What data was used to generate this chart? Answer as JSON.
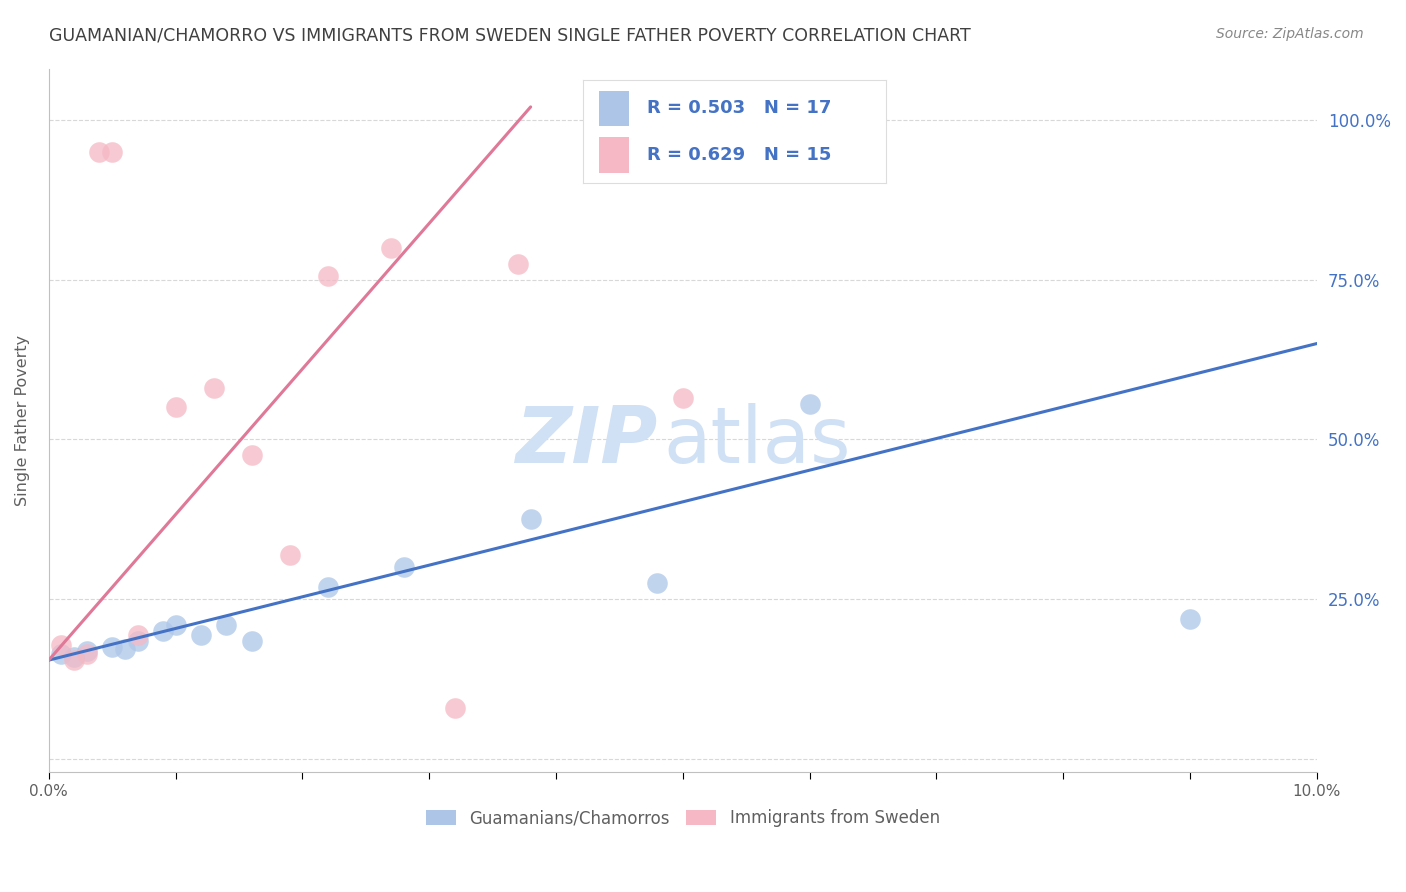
{
  "title": "GUAMANIAN/CHAMORRO VS IMMIGRANTS FROM SWEDEN SINGLE FATHER POVERTY CORRELATION CHART",
  "source": "Source: ZipAtlas.com",
  "ylabel": "Single Father Poverty",
  "blue_label": "Guamanians/Chamorros",
  "pink_label": "Immigrants from Sweden",
  "blue_R": "R = 0.503",
  "blue_N": "N = 17",
  "pink_R": "R = 0.629",
  "pink_N": "N = 15",
  "blue_color": "#adc6e8",
  "pink_color": "#f5b8c4",
  "blue_line_color": "#4472c4",
  "pink_line_color": "#e07898",
  "blue_x": [
    0.001,
    0.002,
    0.003,
    0.005,
    0.006,
    0.007,
    0.009,
    0.01,
    0.012,
    0.014,
    0.016,
    0.022,
    0.028,
    0.038,
    0.048,
    0.06,
    0.09
  ],
  "blue_y": [
    0.165,
    0.16,
    0.17,
    0.175,
    0.172,
    0.185,
    0.2,
    0.21,
    0.195,
    0.21,
    0.185,
    0.27,
    0.3,
    0.375,
    0.275,
    0.555,
    0.22
  ],
  "pink_x": [
    0.001,
    0.002,
    0.003,
    0.004,
    0.005,
    0.007,
    0.01,
    0.013,
    0.016,
    0.019,
    0.022,
    0.027,
    0.032,
    0.037,
    0.05
  ],
  "pink_y": [
    0.178,
    0.155,
    0.165,
    0.95,
    0.95,
    0.195,
    0.55,
    0.58,
    0.475,
    0.32,
    0.755,
    0.8,
    0.08,
    0.775,
    0.565
  ],
  "blue_trend_x": [
    0.0,
    0.1
  ],
  "blue_trend_y": [
    0.155,
    0.65
  ],
  "pink_trend_x": [
    0.0,
    0.038
  ],
  "pink_trend_y": [
    0.155,
    1.02
  ],
  "watermark_zip": "ZIP",
  "watermark_atlas": "atlas",
  "watermark_color": "#d0e0f5",
  "xlim": [
    0.0,
    0.1
  ],
  "ylim": [
    -0.02,
    1.08
  ],
  "ytick_vals": [
    0.0,
    0.25,
    0.5,
    0.75,
    1.0
  ],
  "ytick_labels": [
    "",
    "25.0%",
    "50.0%",
    "75.0%",
    "100.0%"
  ],
  "background_color": "#ffffff",
  "grid_color": "#d8d8d8",
  "title_color": "#404040",
  "source_color": "#888888",
  "axis_label_color": "#606060",
  "tick_label_color": "#4472c4",
  "bottom_tick_label_color": "#606060"
}
